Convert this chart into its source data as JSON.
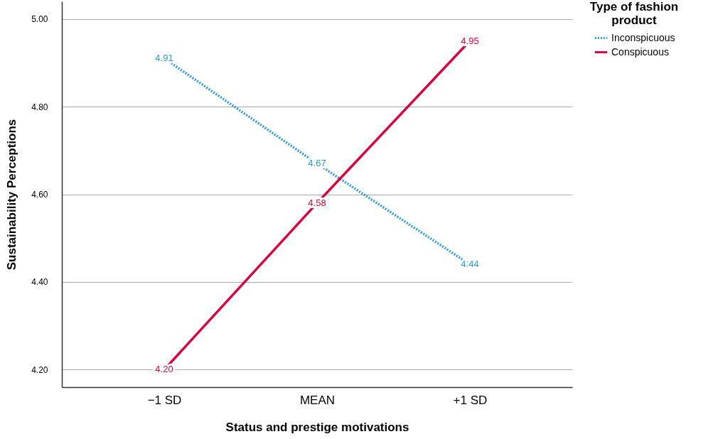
{
  "chart_data": {
    "type": "line",
    "xlabel": "Status and prestige motivations",
    "ylabel": "Sustainability Perceptions",
    "legend_title": "Type of fashion product",
    "categories": [
      "−1 SD",
      "MEAN",
      "+1 SD"
    ],
    "series": [
      {
        "name": "Inconspicuous",
        "color": "#2b9ae8",
        "line_style": "dotted",
        "values": [
          4.91,
          4.67,
          4.44
        ],
        "value_labels": [
          "4.91",
          "4.67",
          "4.44"
        ]
      },
      {
        "name": "Conspicuous",
        "color": "#e0003c",
        "line_style": "solid",
        "values": [
          4.2,
          4.58,
          4.95
        ],
        "value_labels": [
          "4.20",
          "4.58",
          "4.95"
        ]
      }
    ],
    "ylim": [
      4.16,
      5.04
    ],
    "yticks": [
      {
        "value": 4.2,
        "label": "4.20"
      },
      {
        "value": 4.4,
        "label": "4.40"
      },
      {
        "value": 4.6,
        "label": "4.60"
      },
      {
        "value": 4.8,
        "label": "4.80"
      },
      {
        "value": 5.0,
        "label": "5.00"
      }
    ],
    "grid": "y",
    "legend": "top right",
    "marker": "none"
  }
}
